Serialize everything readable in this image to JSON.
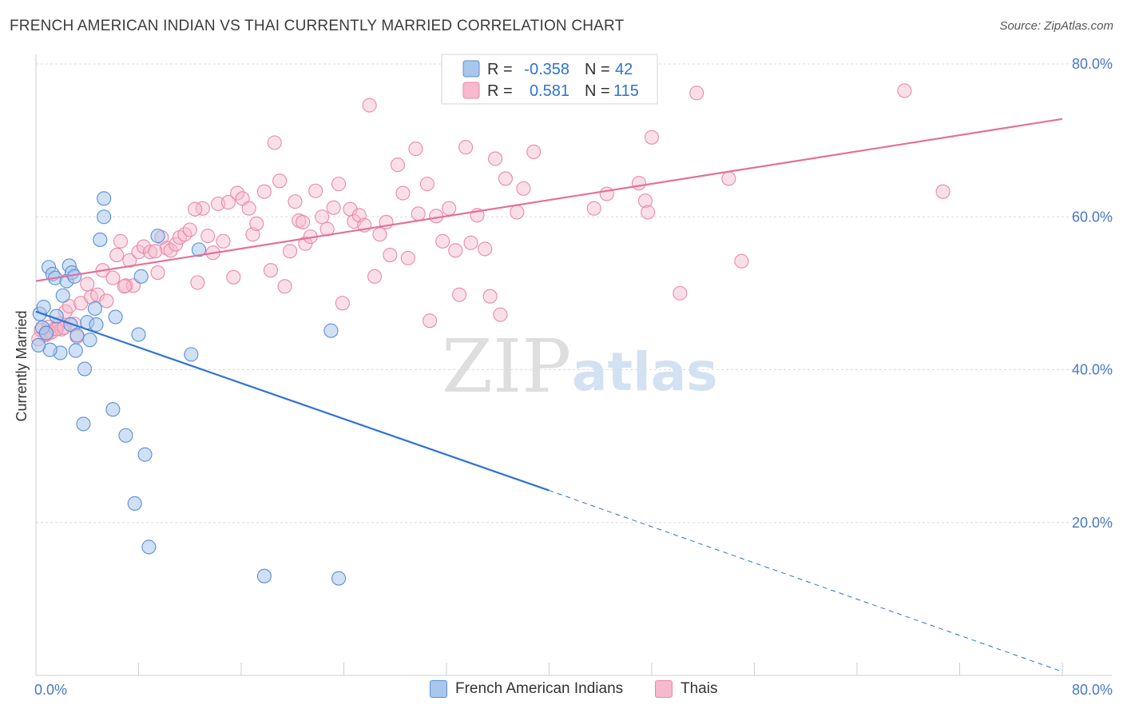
{
  "title": "FRENCH AMERICAN INDIAN VS THAI CURRENTLY MARRIED CORRELATION CHART",
  "source": "Source: ZipAtlas.com",
  "watermark": {
    "zip": "ZIP",
    "atlas": "atlas"
  },
  "legend_top": [
    {
      "r_label": "R =",
      "r_value": "-0.358",
      "n_label": "N =",
      "n_value": "42"
    },
    {
      "r_label": "R =",
      "r_value": "0.581",
      "n_label": "N =",
      "n_value": "115"
    }
  ],
  "legend_bottom": [
    "French American Indians",
    "Thais"
  ],
  "colors": {
    "blue_fill": "#a9c6ec",
    "blue_stroke": "#5b8fd6",
    "blue_line": "#2f72d3",
    "pink_fill": "#f6b9cd",
    "pink_stroke": "#e88aa8",
    "pink_line": "#e3709a",
    "tick_text": "#4a78c4",
    "grid": "#dcdcdc"
  },
  "chart_data": {
    "type": "scatter",
    "title": "FRENCH AMERICAN INDIAN VS THAI CURRENTLY MARRIED CORRELATION CHART",
    "xlabel": "",
    "ylabel": "Currently Married",
    "xlim": [
      0,
      80
    ],
    "ylim": [
      0,
      80
    ],
    "x_tick_labels": [
      "0.0%",
      "80.0%"
    ],
    "y_tick_labels": [
      "20.0%",
      "40.0%",
      "60.0%",
      "80.0%"
    ],
    "grid": true,
    "legend_position": "top-center",
    "series": [
      {
        "name": "French American Indians",
        "r": -0.358,
        "n": 42,
        "trend": {
          "x0": 0,
          "y0": 47.6,
          "x1": 40,
          "y1": 24.2,
          "dashed_to_x": 80,
          "dashed_to_y": 0.5
        },
        "points": [
          [
            0.3,
            47.3
          ],
          [
            0.6,
            48.2
          ],
          [
            0.5,
            45.5
          ],
          [
            0.8,
            44.8
          ],
          [
            1.0,
            53.4
          ],
          [
            1.3,
            52.5
          ],
          [
            1.5,
            52.0
          ],
          [
            1.6,
            47.0
          ],
          [
            2.1,
            49.7
          ],
          [
            2.4,
            51.6
          ],
          [
            2.6,
            53.6
          ],
          [
            2.8,
            52.7
          ],
          [
            3.0,
            52.2
          ],
          [
            2.7,
            45.9
          ],
          [
            3.1,
            42.5
          ],
          [
            1.9,
            42.2
          ],
          [
            1.1,
            42.6
          ],
          [
            3.2,
            44.5
          ],
          [
            4.0,
            46.2
          ],
          [
            4.2,
            43.9
          ],
          [
            4.6,
            48.0
          ],
          [
            4.7,
            45.9
          ],
          [
            5.0,
            57.0
          ],
          [
            5.3,
            60.0
          ],
          [
            5.3,
            62.4
          ],
          [
            3.8,
            40.1
          ],
          [
            6.2,
            46.9
          ],
          [
            8.0,
            44.6
          ],
          [
            8.2,
            52.2
          ],
          [
            9.5,
            57.5
          ],
          [
            12.7,
            55.7
          ],
          [
            12.1,
            42.0
          ],
          [
            23.0,
            45.1
          ],
          [
            6.0,
            34.8
          ],
          [
            3.7,
            32.9
          ],
          [
            7.0,
            31.4
          ],
          [
            8.5,
            28.9
          ],
          [
            7.7,
            22.5
          ],
          [
            8.8,
            16.8
          ],
          [
            17.8,
            13.0
          ],
          [
            23.6,
            12.7
          ],
          [
            0.2,
            43.2
          ]
        ]
      },
      {
        "name": "Thais",
        "r": 0.581,
        "n": 115,
        "trend": {
          "x0": 0,
          "y0": 51.6,
          "x1": 80,
          "y1": 72.8
        },
        "points": [
          [
            0.4,
            45.2
          ],
          [
            0.7,
            44.5
          ],
          [
            1.0,
            45.6
          ],
          [
            1.2,
            44.9
          ],
          [
            1.5,
            45.4
          ],
          [
            1.8,
            46.0
          ],
          [
            2.0,
            45.3
          ],
          [
            2.3,
            47.6
          ],
          [
            2.6,
            48.3
          ],
          [
            3.0,
            46.0
          ],
          [
            3.2,
            44.3
          ],
          [
            3.5,
            48.7
          ],
          [
            4.0,
            51.2
          ],
          [
            4.3,
            49.5
          ],
          [
            4.8,
            49.8
          ],
          [
            5.2,
            53.0
          ],
          [
            5.5,
            49.0
          ],
          [
            6.0,
            52.0
          ],
          [
            6.3,
            55.0
          ],
          [
            6.6,
            56.8
          ],
          [
            7.0,
            51.0
          ],
          [
            7.3,
            54.3
          ],
          [
            7.6,
            51.0
          ],
          [
            8.0,
            55.4
          ],
          [
            8.4,
            56.1
          ],
          [
            8.9,
            55.4
          ],
          [
            9.5,
            52.7
          ],
          [
            9.8,
            57.3
          ],
          [
            10.2,
            55.9
          ],
          [
            10.5,
            55.6
          ],
          [
            10.9,
            56.4
          ],
          [
            11.2,
            57.3
          ],
          [
            11.6,
            57.7
          ],
          [
            12.0,
            58.3
          ],
          [
            12.6,
            51.4
          ],
          [
            13.0,
            61.1
          ],
          [
            13.4,
            57.5
          ],
          [
            13.8,
            55.3
          ],
          [
            14.2,
            61.7
          ],
          [
            14.6,
            56.8
          ],
          [
            15.0,
            61.9
          ],
          [
            15.4,
            52.1
          ],
          [
            15.7,
            63.1
          ],
          [
            16.1,
            62.4
          ],
          [
            16.6,
            61.1
          ],
          [
            16.9,
            57.7
          ],
          [
            17.2,
            59.1
          ],
          [
            17.8,
            63.3
          ],
          [
            18.3,
            53.0
          ],
          [
            18.6,
            69.7
          ],
          [
            19.0,
            64.7
          ],
          [
            19.4,
            50.9
          ],
          [
            19.8,
            55.5
          ],
          [
            20.2,
            62.0
          ],
          [
            20.5,
            59.5
          ],
          [
            21.0,
            56.5
          ],
          [
            21.4,
            57.4
          ],
          [
            21.8,
            63.4
          ],
          [
            22.3,
            60.0
          ],
          [
            22.7,
            58.4
          ],
          [
            23.2,
            61.2
          ],
          [
            23.6,
            64.3
          ],
          [
            23.9,
            48.7
          ],
          [
            24.5,
            61.0
          ],
          [
            24.8,
            59.4
          ],
          [
            25.2,
            60.2
          ],
          [
            25.6,
            58.9
          ],
          [
            26.0,
            74.6
          ],
          [
            26.4,
            52.2
          ],
          [
            26.8,
            57.7
          ],
          [
            27.3,
            59.3
          ],
          [
            27.6,
            55.0
          ],
          [
            28.2,
            66.8
          ],
          [
            28.6,
            63.1
          ],
          [
            29.0,
            54.6
          ],
          [
            29.6,
            68.9
          ],
          [
            29.8,
            60.4
          ],
          [
            30.5,
            64.3
          ],
          [
            30.7,
            46.4
          ],
          [
            31.2,
            60.1
          ],
          [
            31.7,
            56.8
          ],
          [
            32.2,
            61.1
          ],
          [
            32.7,
            55.6
          ],
          [
            33.0,
            49.8
          ],
          [
            33.5,
            69.1
          ],
          [
            33.9,
            56.6
          ],
          [
            34.4,
            60.2
          ],
          [
            35.0,
            55.8
          ],
          [
            35.4,
            49.6
          ],
          [
            35.8,
            67.6
          ],
          [
            36.2,
            47.2
          ],
          [
            36.6,
            65.0
          ],
          [
            37.5,
            60.6
          ],
          [
            38.0,
            63.7
          ],
          [
            38.8,
            68.5
          ],
          [
            43.5,
            61.1
          ],
          [
            44.5,
            63.0
          ],
          [
            47.0,
            64.4
          ],
          [
            47.5,
            62.1
          ],
          [
            47.7,
            60.6
          ],
          [
            48.0,
            70.4
          ],
          [
            50.2,
            50.0
          ],
          [
            51.5,
            76.2
          ],
          [
            54.0,
            65.0
          ],
          [
            55.0,
            54.2
          ],
          [
            67.7,
            76.5
          ],
          [
            70.7,
            63.3
          ],
          [
            0.2,
            44.0
          ],
          [
            0.9,
            44.7
          ],
          [
            1.6,
            45.3
          ],
          [
            2.2,
            45.5
          ],
          [
            6.9,
            50.9
          ],
          [
            9.3,
            55.5
          ],
          [
            12.4,
            61.0
          ],
          [
            20.8,
            59.3
          ]
        ]
      }
    ]
  }
}
